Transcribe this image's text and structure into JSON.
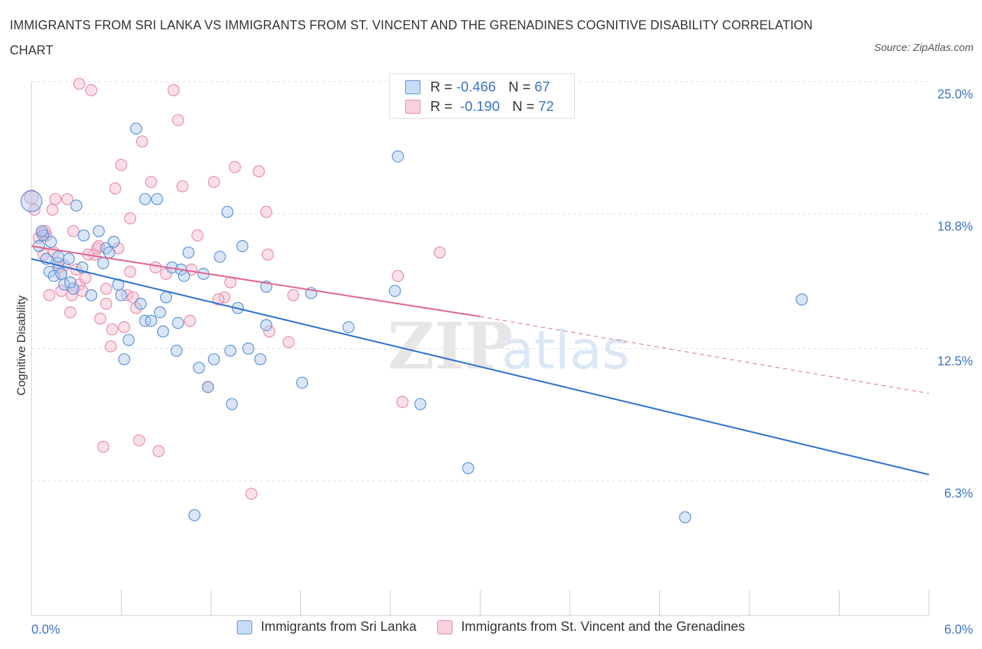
{
  "title": "IMMIGRANTS FROM SRI LANKA VS IMMIGRANTS FROM ST. VINCENT AND THE GRENADINES COGNITIVE DISABILITY CORRELATION CHART",
  "source": "Source: ZipAtlas.com",
  "watermark": {
    "zip": "ZIP",
    "atlas": "atlas"
  },
  "colors": {
    "blue_fill": "#a9c8f0",
    "blue_stroke": "#5b8fd6",
    "blue_line": "#2f74d0",
    "pink_fill": "#f5b8cb",
    "pink_stroke": "#e88aa8",
    "pink_line": "#e06990",
    "accent_text": "#3b73c9",
    "grid": "#dddddd"
  },
  "legend": {
    "rows": [
      {
        "r_label": "R = ",
        "r_value": "-0.466",
        "n_label": "N = ",
        "n_value": "67"
      },
      {
        "r_label": "R = ",
        "r_value": " -0.190",
        "n_label": "N = ",
        "n_value": "72"
      }
    ]
  },
  "chart_data": {
    "type": "scatter",
    "title": "IMMIGRANTS FROM SRI LANKA VS IMMIGRANTS FROM ST. VINCENT AND THE GRENADINES COGNITIVE DISABILITY CORRELATION CHART",
    "xlabel": "",
    "ylabel": "Cognitive Disability",
    "xlim": [
      0,
      6
    ],
    "ylim": [
      0,
      25
    ],
    "x_tick_labels": [
      "0.0%",
      "6.0%"
    ],
    "y_ticks": [
      6.3,
      12.5,
      18.8,
      25.0
    ],
    "y_tick_labels": [
      "6.3%",
      "12.5%",
      "18.8%",
      "25.0%"
    ],
    "grid": "horizontal dashed",
    "legend_position": "top-center",
    "series": [
      {
        "name": "Immigrants from Sri Lanka",
        "color": "blue",
        "trend": {
          "x": [
            0,
            6
          ],
          "y": [
            16.7,
            6.6
          ]
        },
        "points": [
          [
            0.0,
            19.4
          ],
          [
            0.05,
            17.3
          ],
          [
            0.08,
            17.8
          ],
          [
            0.1,
            16.7
          ],
          [
            0.12,
            16.1
          ],
          [
            0.15,
            15.9
          ],
          [
            0.18,
            16.5
          ],
          [
            0.2,
            16.0
          ],
          [
            0.22,
            15.5
          ],
          [
            0.25,
            16.7
          ],
          [
            0.28,
            15.3
          ],
          [
            0.3,
            19.2
          ],
          [
            0.35,
            17.8
          ],
          [
            0.4,
            15.0
          ],
          [
            0.45,
            18.0
          ],
          [
            0.48,
            16.5
          ],
          [
            0.5,
            17.2
          ],
          [
            0.55,
            17.5
          ],
          [
            0.6,
            15.0
          ],
          [
            0.62,
            12.0
          ],
          [
            0.65,
            12.9
          ],
          [
            0.7,
            22.8
          ],
          [
            0.73,
            14.6
          ],
          [
            0.76,
            13.8
          ],
          [
            0.8,
            13.8
          ],
          [
            0.76,
            19.5
          ],
          [
            0.84,
            19.5
          ],
          [
            0.86,
            14.2
          ],
          [
            0.88,
            13.3
          ],
          [
            0.9,
            14.9
          ],
          [
            0.94,
            16.3
          ],
          [
            0.97,
            12.4
          ],
          [
            0.98,
            13.7
          ],
          [
            1.0,
            16.2
          ],
          [
            1.02,
            15.9
          ],
          [
            1.05,
            17.0
          ],
          [
            1.09,
            4.7
          ],
          [
            1.12,
            11.6
          ],
          [
            1.15,
            16.0
          ],
          [
            1.18,
            10.7
          ],
          [
            1.22,
            12.0
          ],
          [
            1.26,
            16.8
          ],
          [
            1.31,
            18.9
          ],
          [
            1.33,
            12.4
          ],
          [
            1.34,
            9.9
          ],
          [
            1.38,
            14.4
          ],
          [
            1.41,
            17.3
          ],
          [
            1.45,
            12.5
          ],
          [
            1.53,
            12.0
          ],
          [
            1.57,
            13.6
          ],
          [
            1.57,
            15.4
          ],
          [
            1.81,
            10.9
          ],
          [
            1.87,
            15.1
          ],
          [
            2.12,
            13.5
          ],
          [
            2.45,
            21.5
          ],
          [
            2.43,
            15.2
          ],
          [
            2.6,
            9.9
          ],
          [
            2.92,
            6.9
          ],
          [
            4.37,
            4.6
          ],
          [
            5.15,
            14.8
          ],
          [
            0.07,
            18.0
          ],
          [
            0.18,
            16.8
          ],
          [
            0.26,
            15.6
          ],
          [
            0.34,
            16.3
          ],
          [
            0.52,
            17.0
          ],
          [
            0.58,
            15.5
          ],
          [
            0.13,
            17.5
          ]
        ]
      },
      {
        "name": "Immigrants from St. Vincent and the Grenadines",
        "color": "pink",
        "trend": {
          "x": [
            0,
            3.0
          ],
          "y": [
            17.3,
            14.0
          ]
        },
        "trend_dashed": {
          "x": [
            3.0,
            6
          ],
          "y": [
            14.0,
            10.4
          ]
        },
        "points": [
          [
            0.0,
            19.6
          ],
          [
            0.02,
            19.0
          ],
          [
            0.05,
            17.7
          ],
          [
            0.07,
            17.9
          ],
          [
            0.08,
            16.9
          ],
          [
            0.1,
            17.8
          ],
          [
            0.12,
            15.0
          ],
          [
            0.14,
            19.0
          ],
          [
            0.16,
            19.5
          ],
          [
            0.18,
            16.3
          ],
          [
            0.2,
            15.2
          ],
          [
            0.22,
            16.4
          ],
          [
            0.24,
            19.5
          ],
          [
            0.26,
            14.2
          ],
          [
            0.28,
            18.0
          ],
          [
            0.3,
            16.2
          ],
          [
            0.32,
            15.5
          ],
          [
            0.34,
            15.2
          ],
          [
            0.36,
            15.8
          ],
          [
            0.32,
            24.9
          ],
          [
            0.4,
            24.6
          ],
          [
            0.42,
            16.9
          ],
          [
            0.44,
            17.2
          ],
          [
            0.46,
            13.9
          ],
          [
            0.48,
            7.9
          ],
          [
            0.5,
            15.3
          ],
          [
            0.5,
            14.6
          ],
          [
            0.53,
            12.6
          ],
          [
            0.54,
            13.4
          ],
          [
            0.56,
            20.0
          ],
          [
            0.58,
            17.2
          ],
          [
            0.6,
            21.1
          ],
          [
            0.62,
            13.5
          ],
          [
            0.64,
            15.0
          ],
          [
            0.66,
            18.6
          ],
          [
            0.66,
            16.1
          ],
          [
            0.68,
            14.9
          ],
          [
            0.7,
            14.4
          ],
          [
            0.72,
            8.2
          ],
          [
            0.74,
            22.2
          ],
          [
            0.8,
            20.3
          ],
          [
            0.85,
            7.7
          ],
          [
            0.9,
            16.0
          ],
          [
            0.95,
            24.6
          ],
          [
            0.98,
            23.2
          ],
          [
            1.01,
            20.1
          ],
          [
            1.06,
            13.8
          ],
          [
            1.07,
            16.2
          ],
          [
            1.11,
            17.8
          ],
          [
            1.18,
            10.7
          ],
          [
            1.22,
            20.3
          ],
          [
            1.29,
            14.9
          ],
          [
            1.33,
            15.6
          ],
          [
            1.36,
            21.0
          ],
          [
            1.52,
            20.8
          ],
          [
            1.57,
            18.9
          ],
          [
            1.58,
            16.9
          ],
          [
            1.59,
            13.3
          ],
          [
            1.72,
            12.8
          ],
          [
            1.75,
            15.0
          ],
          [
            1.47,
            5.7
          ],
          [
            2.45,
            15.9
          ],
          [
            2.48,
            10.0
          ],
          [
            2.73,
            17.0
          ],
          [
            1.25,
            14.8
          ],
          [
            0.83,
            16.3
          ],
          [
            0.38,
            16.9
          ],
          [
            0.2,
            16.0
          ],
          [
            0.27,
            15.0
          ],
          [
            0.15,
            17.0
          ],
          [
            0.09,
            18.0
          ],
          [
            0.45,
            17.3
          ]
        ]
      }
    ]
  }
}
